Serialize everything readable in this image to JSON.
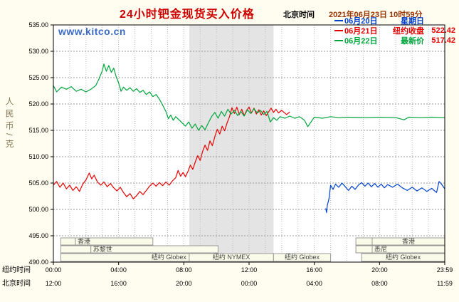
{
  "header": {
    "title": "24小时钯金现货买入价格",
    "clock_label": "北京时间",
    "clock_value": "2021年06月23日 10时59分"
  },
  "watermark": "www.kitco.cn",
  "y_axis_title": "人民币/克",
  "legend": [
    {
      "date": "06月20日",
      "label": "星期日",
      "value": "",
      "color": "#0040cc"
    },
    {
      "date": "06月21日",
      "label": "纽约收盘",
      "value": "522.42",
      "color": "#e60000"
    },
    {
      "date": "06月22日",
      "label": "最新价",
      "value": "517.42",
      "color": "#00a63c",
      "value_color": "#e60000"
    }
  ],
  "bottom_axis": {
    "ny_label": "纽约时间",
    "bj_label": "北京时间",
    "ny_ticks": [
      "00:00",
      "04:00",
      "08:00",
      "12:00",
      "16:00",
      "20:00",
      "23:59"
    ],
    "bj_ticks": [
      "12:00",
      "16:00",
      "20:00",
      "00:00",
      "04:00",
      "08:00",
      "11:59"
    ]
  },
  "colors": {
    "background": "#fffdf0",
    "plot_bg": "#ffffff",
    "band": "#e4e4e4",
    "grid_h": "#999999",
    "grid_v": "#bbbbbb",
    "border": "#000000",
    "title": "#cc0000",
    "clock_value": "#993300",
    "watermark": "#3a6bc9",
    "y_axis_title": "#887755",
    "session_fill": "#fbfbe9",
    "session_border": "#999999",
    "session_text": "#444444"
  },
  "chart_data": {
    "type": "line",
    "title": "24小时钯金现货买入价格",
    "ylabel": "人民币/克",
    "xlabel": "纽约时间 / 北京时间",
    "ylim": [
      490,
      535
    ],
    "xlim_hours": [
      0,
      24
    ],
    "y_ticks": [
      535,
      530,
      525,
      520,
      515,
      510,
      505,
      500,
      495,
      490
    ],
    "x_tick_hours": [
      0,
      4,
      8,
      12,
      16,
      20,
      24
    ],
    "grid": "dotted",
    "nymex_band_hours": [
      8.33,
      13.5
    ],
    "legend_position": "top-right",
    "series": [
      {
        "name": "06月20日 星期日",
        "color": "#0040cc",
        "points": [
          [
            16.7,
            500.2
          ],
          [
            16.75,
            499.4
          ],
          [
            16.8,
            500.8
          ],
          [
            16.9,
            502
          ],
          [
            17,
            504.6
          ],
          [
            17.15,
            503.8
          ],
          [
            17.3,
            504.8
          ],
          [
            17.5,
            504.2
          ],
          [
            17.7,
            505
          ],
          [
            17.9,
            504.3
          ],
          [
            18.1,
            503.6
          ],
          [
            18.3,
            504.4
          ],
          [
            18.5,
            503.8
          ],
          [
            18.7,
            504.6
          ],
          [
            18.9,
            505.1
          ],
          [
            19.1,
            504.4
          ],
          [
            19.3,
            505
          ],
          [
            19.5,
            504.3
          ],
          [
            19.7,
            504.9
          ],
          [
            19.9,
            504.2
          ],
          [
            20.1,
            504.8
          ],
          [
            20.3,
            504.1
          ],
          [
            20.5,
            504.7
          ],
          [
            20.8,
            504.2
          ],
          [
            21.1,
            504.8
          ],
          [
            21.4,
            504.1
          ],
          [
            21.7,
            503.6
          ],
          [
            22,
            504.2
          ],
          [
            22.3,
            503.5
          ],
          [
            22.6,
            504.1
          ],
          [
            22.9,
            503.4
          ],
          [
            23.2,
            504
          ],
          [
            23.5,
            503.2
          ],
          [
            23.65,
            505.3
          ],
          [
            23.8,
            504.8
          ],
          [
            24,
            503.9
          ]
        ]
      },
      {
        "name": "06月21日 纽约收盘 522.42",
        "color": "#e60000",
        "points": [
          [
            0,
            504.6
          ],
          [
            0.2,
            505.3
          ],
          [
            0.4,
            504.2
          ],
          [
            0.6,
            505
          ],
          [
            0.8,
            503.9
          ],
          [
            1,
            504.6
          ],
          [
            1.2,
            503.6
          ],
          [
            1.4,
            504.3
          ],
          [
            1.6,
            503.4
          ],
          [
            1.8,
            504.8
          ],
          [
            2,
            505.6
          ],
          [
            2.2,
            506.9
          ],
          [
            2.35,
            505.8
          ],
          [
            2.5,
            506.5
          ],
          [
            2.7,
            505.2
          ],
          [
            2.9,
            504.6
          ],
          [
            3.1,
            505.2
          ],
          [
            3.3,
            504.3
          ],
          [
            3.5,
            504.9
          ],
          [
            3.7,
            504.1
          ],
          [
            3.9,
            503.5
          ],
          [
            4.1,
            504.2
          ],
          [
            4.3,
            503.2
          ],
          [
            4.5,
            502.4
          ],
          [
            4.7,
            503
          ],
          [
            4.9,
            502
          ],
          [
            5.1,
            502.6
          ],
          [
            5.3,
            503.4
          ],
          [
            5.5,
            502.8
          ],
          [
            5.7,
            503.6
          ],
          [
            5.9,
            504.4
          ],
          [
            6.1,
            505
          ],
          [
            6.3,
            504.4
          ],
          [
            6.5,
            505.1
          ],
          [
            6.7,
            504.5
          ],
          [
            6.9,
            505.2
          ],
          [
            7.1,
            504.6
          ],
          [
            7.3,
            505.4
          ],
          [
            7.5,
            506
          ],
          [
            7.65,
            507.4
          ],
          [
            7.8,
            506.3
          ],
          [
            7.95,
            507
          ],
          [
            8.1,
            506.2
          ],
          [
            8.25,
            507.2
          ],
          [
            8.4,
            508.4
          ],
          [
            8.55,
            507.6
          ],
          [
            8.7,
            509
          ],
          [
            8.85,
            510.2
          ],
          [
            9,
            509.3
          ],
          [
            9.15,
            511
          ],
          [
            9.3,
            512.2
          ],
          [
            9.45,
            511.2
          ],
          [
            9.6,
            513
          ],
          [
            9.75,
            512.1
          ],
          [
            9.9,
            513.8
          ],
          [
            10.05,
            515.2
          ],
          [
            10.2,
            514.3
          ],
          [
            10.35,
            515.8
          ],
          [
            10.5,
            514.9
          ],
          [
            10.65,
            516.4
          ],
          [
            10.8,
            517.6
          ],
          [
            10.95,
            519.3
          ],
          [
            11.1,
            518.2
          ],
          [
            11.25,
            519.4
          ],
          [
            11.4,
            518
          ],
          [
            11.55,
            519
          ],
          [
            11.7,
            517.8
          ],
          [
            11.85,
            518.8
          ],
          [
            12,
            519.4
          ],
          [
            12.15,
            518.3
          ],
          [
            12.3,
            519.2
          ],
          [
            12.45,
            518.1
          ],
          [
            12.6,
            518.9
          ],
          [
            12.75,
            517.9
          ],
          [
            12.9,
            518.7
          ],
          [
            13.05,
            517.8
          ],
          [
            13.2,
            518.5
          ],
          [
            13.35,
            519.2
          ],
          [
            13.5,
            518.4
          ],
          [
            13.65,
            519
          ],
          [
            13.8,
            518.3
          ],
          [
            14,
            518.8
          ],
          [
            14.3,
            518
          ],
          [
            14.5,
            518.5
          ]
        ]
      },
      {
        "name": "06月22日 最新价 517.42",
        "color": "#00a63c",
        "points": [
          [
            0,
            523.5
          ],
          [
            0.2,
            522.3
          ],
          [
            0.5,
            523.2
          ],
          [
            0.8,
            522.8
          ],
          [
            1.1,
            523.3
          ],
          [
            1.4,
            522.4
          ],
          [
            1.7,
            522.8
          ],
          [
            2,
            522.3
          ],
          [
            2.3,
            522.8
          ],
          [
            2.6,
            523.5
          ],
          [
            2.8,
            524.8
          ],
          [
            3,
            526.3
          ],
          [
            3.1,
            527.6
          ],
          [
            3.25,
            526.2
          ],
          [
            3.4,
            527.3
          ],
          [
            3.55,
            526
          ],
          [
            3.7,
            526.8
          ],
          [
            3.85,
            525.2
          ],
          [
            4,
            524
          ],
          [
            4.15,
            522.4
          ],
          [
            4.3,
            523.2
          ],
          [
            4.5,
            522.6
          ],
          [
            4.7,
            523.1
          ],
          [
            4.9,
            522.4
          ],
          [
            5.1,
            522.9
          ],
          [
            5.3,
            522.2
          ],
          [
            5.5,
            522.6
          ],
          [
            5.7,
            521.8
          ],
          [
            5.9,
            522.3
          ],
          [
            6.1,
            521.4
          ],
          [
            6.3,
            521.8
          ],
          [
            6.5,
            520.9
          ],
          [
            6.7,
            519.8
          ],
          [
            6.9,
            518.6
          ],
          [
            7.05,
            517.2
          ],
          [
            7.2,
            517.9
          ],
          [
            7.35,
            516.9
          ],
          [
            7.5,
            517.6
          ],
          [
            7.7,
            517
          ],
          [
            7.9,
            516.4
          ],
          [
            8.1,
            515.8
          ],
          [
            8.3,
            516.6
          ],
          [
            8.5,
            515.4
          ],
          [
            8.7,
            516.2
          ],
          [
            8.9,
            515
          ],
          [
            9.1,
            515.9
          ],
          [
            9.3,
            515.1
          ],
          [
            9.5,
            516.4
          ],
          [
            9.7,
            517.6
          ],
          [
            9.9,
            518.4
          ],
          [
            10.1,
            517.3
          ],
          [
            10.3,
            518.6
          ],
          [
            10.5,
            517.7
          ],
          [
            10.7,
            519
          ],
          [
            10.9,
            518.1
          ],
          [
            11.1,
            518.8
          ],
          [
            11.3,
            517.8
          ],
          [
            11.5,
            518.6
          ],
          [
            11.7,
            517.7
          ],
          [
            11.9,
            518.9
          ],
          [
            12.1,
            518.2
          ],
          [
            12.3,
            519.1
          ],
          [
            12.5,
            518.3
          ],
          [
            12.7,
            518.8
          ],
          [
            12.9,
            518
          ],
          [
            13.1,
            518.6
          ],
          [
            13.3,
            516.6
          ],
          [
            13.5,
            517.4
          ],
          [
            13.7,
            516.9
          ],
          [
            13.9,
            517.6
          ],
          [
            14.2,
            517.3
          ],
          [
            14.5,
            517.7
          ],
          [
            14.8,
            517.3
          ],
          [
            15.1,
            517.6
          ],
          [
            15.4,
            516.9
          ],
          [
            15.6,
            515.7
          ],
          [
            15.8,
            516.6
          ],
          [
            16,
            517.5
          ],
          [
            16.5,
            517.3
          ],
          [
            17,
            517.6
          ],
          [
            17.5,
            517.4
          ],
          [
            18,
            517.5
          ],
          [
            19,
            517.4
          ],
          [
            20,
            517.5
          ],
          [
            21,
            517.4
          ],
          [
            21.5,
            517
          ],
          [
            21.8,
            517.5
          ],
          [
            22.5,
            517.4
          ],
          [
            23.2,
            517.5
          ],
          [
            24,
            517.4
          ]
        ]
      }
    ],
    "sessions": [
      {
        "boxes": [
          {
            "start": 0.45,
            "end": 1.35,
            "label": "",
            "align": "center"
          },
          {
            "start": 1.35,
            "end": 6.1,
            "label": "香港",
            "align": "left"
          },
          {
            "start": 18.55,
            "end": 19.55,
            "label": "",
            "align": "center"
          },
          {
            "start": 19.55,
            "end": 24,
            "label": "香港",
            "align": "center"
          }
        ]
      },
      {
        "boxes": [
          {
            "start": 0.45,
            "end": 2.3,
            "label": "",
            "align": "center"
          },
          {
            "start": 2.3,
            "end": 10.1,
            "label": "苏黎世",
            "align": "left"
          },
          {
            "start": 18.55,
            "end": 19.55,
            "label": "",
            "align": "center"
          },
          {
            "start": 19.55,
            "end": 24,
            "label": "悉尼",
            "align": "left"
          }
        ]
      },
      {
        "boxes": [
          {
            "start": 0.45,
            "end": 8.33,
            "label": "纽约 Globex",
            "align": "right"
          },
          {
            "start": 8.33,
            "end": 13.5,
            "label": "纽约 NYMEX",
            "align": "center"
          },
          {
            "start": 13.5,
            "end": 17,
            "label": "纽约 Globex",
            "align": "center"
          },
          {
            "start": 18.9,
            "end": 24,
            "label": "纽约 Globex",
            "align": "center"
          }
        ]
      }
    ]
  }
}
